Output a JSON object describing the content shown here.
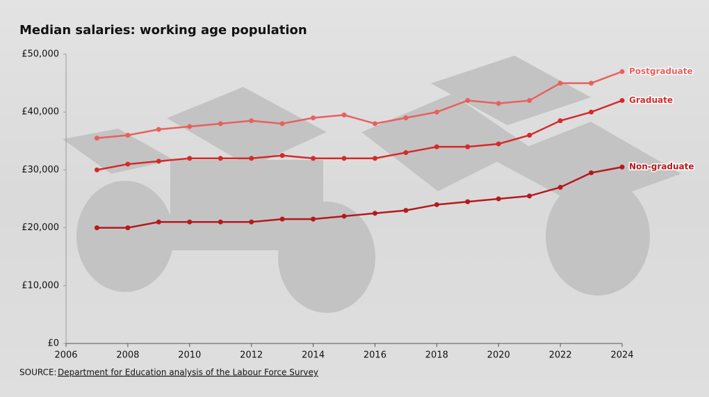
{
  "chart_data": {
    "type": "line",
    "title": "Median salaries: working age population",
    "x": [
      2007,
      2008,
      2009,
      2010,
      2011,
      2012,
      2013,
      2014,
      2015,
      2016,
      2017,
      2018,
      2019,
      2020,
      2021,
      2022,
      2023,
      2024
    ],
    "series": [
      {
        "name": "Postgraduate",
        "color": "#e8605d",
        "values": [
          35500,
          36000,
          37000,
          37500,
          38000,
          38500,
          38000,
          39000,
          39500,
          38000,
          39000,
          40000,
          42000,
          41500,
          42000,
          45000,
          45000,
          47000
        ]
      },
      {
        "name": "Graduate",
        "color": "#d42a2a",
        "values": [
          30000,
          31000,
          31500,
          32000,
          32000,
          32000,
          32500,
          32000,
          32000,
          32000,
          33000,
          34000,
          34000,
          34500,
          36000,
          38500,
          40000,
          42000
        ]
      },
      {
        "name": "Non-graduate",
        "color": "#b5191d",
        "values": [
          20000,
          20000,
          21000,
          21000,
          21000,
          21000,
          21500,
          21500,
          22000,
          22500,
          23000,
          24000,
          24500,
          25000,
          25500,
          27000,
          29500,
          30500
        ]
      }
    ],
    "xlim": [
      2006,
      2024
    ],
    "xticks": [
      2006,
      2008,
      2010,
      2012,
      2014,
      2016,
      2018,
      2020,
      2022,
      2024
    ],
    "ylim": [
      0,
      50000
    ],
    "yticks": [
      {
        "value": 0,
        "label": "£0"
      },
      {
        "value": 10000,
        "label": "£10,000"
      },
      {
        "value": 20000,
        "label": "£20,000"
      },
      {
        "value": 30000,
        "label": "£30,000"
      },
      {
        "value": 40000,
        "label": "£40,000"
      },
      {
        "value": 50000,
        "label": "£50,000"
      }
    ],
    "source_label": "SOURCE:",
    "source_link": "Department for Education analysis of the Labour Force Survey"
  }
}
